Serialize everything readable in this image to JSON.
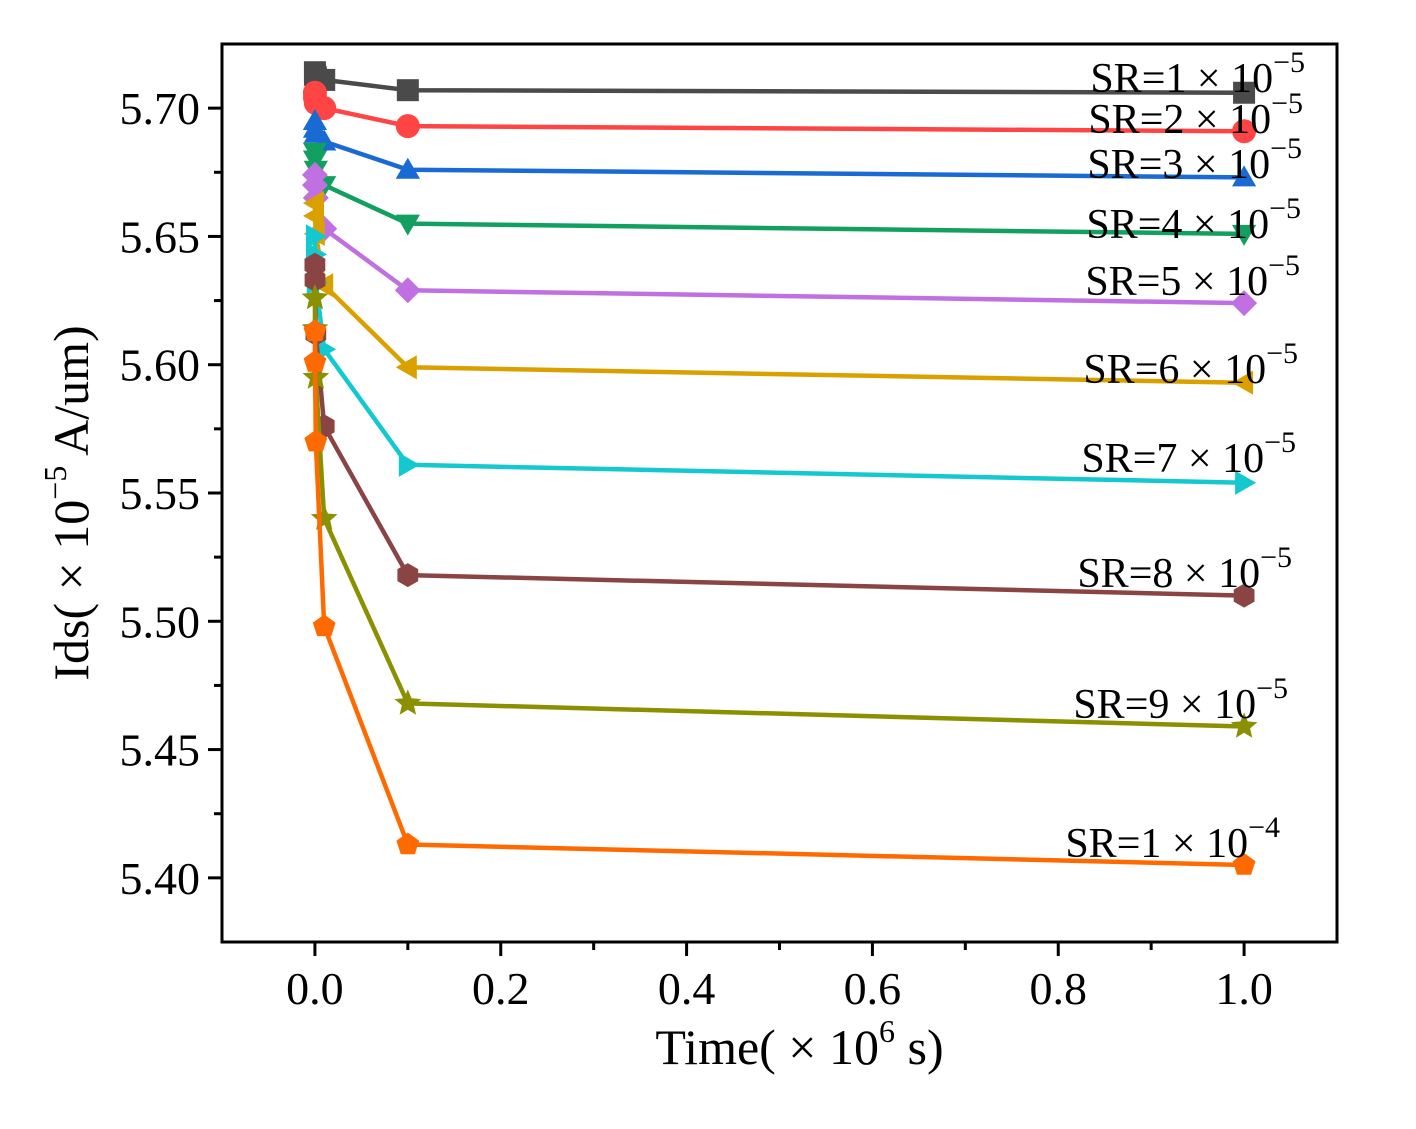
{
  "chart_data": {
    "type": "line",
    "title": "",
    "xlabel": {
      "prefix": "Time( × 10",
      "exp": "6",
      "suffix": " s)"
    },
    "ylabel": {
      "prefix": "Ids( × 10",
      "exp": "−5",
      "suffix": " A/um)"
    },
    "xlim": [
      -0.1,
      1.1
    ],
    "ylim": [
      5.375,
      5.725
    ],
    "xticks": [
      {
        "value": 0.0,
        "label": "0.0"
      },
      {
        "value": 0.2,
        "label": "0.2"
      },
      {
        "value": 0.4,
        "label": "0.4"
      },
      {
        "value": 0.6,
        "label": "0.6"
      },
      {
        "value": 0.8,
        "label": "0.8"
      },
      {
        "value": 1.0,
        "label": "1.0"
      }
    ],
    "yticks": [
      {
        "value": 5.4,
        "label": "5.40"
      },
      {
        "value": 5.45,
        "label": "5.45"
      },
      {
        "value": 5.5,
        "label": "5.50"
      },
      {
        "value": 5.55,
        "label": "5.55"
      },
      {
        "value": 5.6,
        "label": "5.60"
      },
      {
        "value": 5.65,
        "label": "5.65"
      },
      {
        "value": 5.7,
        "label": "5.70"
      }
    ],
    "x": [
      0.0,
      0.0001,
      0.001,
      0.01,
      0.1,
      1.0
    ],
    "series": [
      {
        "name": "SR=1 × 10−5",
        "label_base": "SR=1 × 10",
        "label_exp": "−5",
        "color": "#4a4a4a",
        "marker": "square",
        "values": [
          5.714,
          5.713,
          5.712,
          5.711,
          5.707,
          5.706
        ]
      },
      {
        "name": "SR=2 × 10−5",
        "label_base": "SR=2 × 10",
        "label_exp": "−5",
        "color": "#ff4444",
        "marker": "circle",
        "values": [
          5.706,
          5.704,
          5.702,
          5.7,
          5.693,
          5.691
        ]
      },
      {
        "name": "SR=3 × 10−5",
        "label_base": "SR=3 × 10",
        "label_exp": "−5",
        "color": "#1a6ad4",
        "marker": "triangle-up",
        "values": [
          5.695,
          5.692,
          5.69,
          5.687,
          5.676,
          5.673
        ]
      },
      {
        "name": "SR=4 × 10−5",
        "label_base": "SR=4 × 10",
        "label_exp": "−5",
        "color": "#12a060",
        "marker": "triangle-down",
        "values": [
          5.683,
          5.68,
          5.676,
          5.67,
          5.655,
          5.651
        ]
      },
      {
        "name": "SR=5 × 10−5",
        "label_base": "SR=5 × 10",
        "label_exp": "−5",
        "color": "#c070e0",
        "marker": "diamond",
        "values": [
          5.674,
          5.67,
          5.665,
          5.653,
          5.629,
          5.624
        ]
      },
      {
        "name": "SR=6 × 10−5",
        "label_base": "SR=6 × 10",
        "label_exp": "−5",
        "color": "#daa000",
        "marker": "triangle-left",
        "values": [
          5.663,
          5.658,
          5.651,
          5.631,
          5.599,
          5.593
        ]
      },
      {
        "name": "SR=7 × 10−5",
        "label_base": "SR=7 × 10",
        "label_exp": "−5",
        "color": "#14c8d0",
        "marker": "triangle-right",
        "values": [
          5.65,
          5.643,
          5.632,
          5.606,
          5.561,
          5.554
        ]
      },
      {
        "name": "SR=8 × 10−5",
        "label_base": "SR=8 × 10",
        "label_exp": "−5",
        "color": "#8a4444",
        "marker": "hexagon",
        "values": [
          5.639,
          5.633,
          5.612,
          5.576,
          5.518,
          5.51
        ]
      },
      {
        "name": "SR=9 × 10−5",
        "label_base": "SR=9 × 10",
        "label_exp": "−5",
        "color": "#8a9000",
        "marker": "star",
        "values": [
          5.626,
          5.614,
          5.595,
          5.54,
          5.468,
          5.459
        ]
      },
      {
        "name": "SR=1 × 10−4",
        "label_base": "SR=1 × 10",
        "label_exp": "−4",
        "color": "#ff6a00",
        "marker": "pentagon",
        "values": [
          5.613,
          5.601,
          5.57,
          5.498,
          5.413,
          5.405
        ]
      }
    ]
  }
}
